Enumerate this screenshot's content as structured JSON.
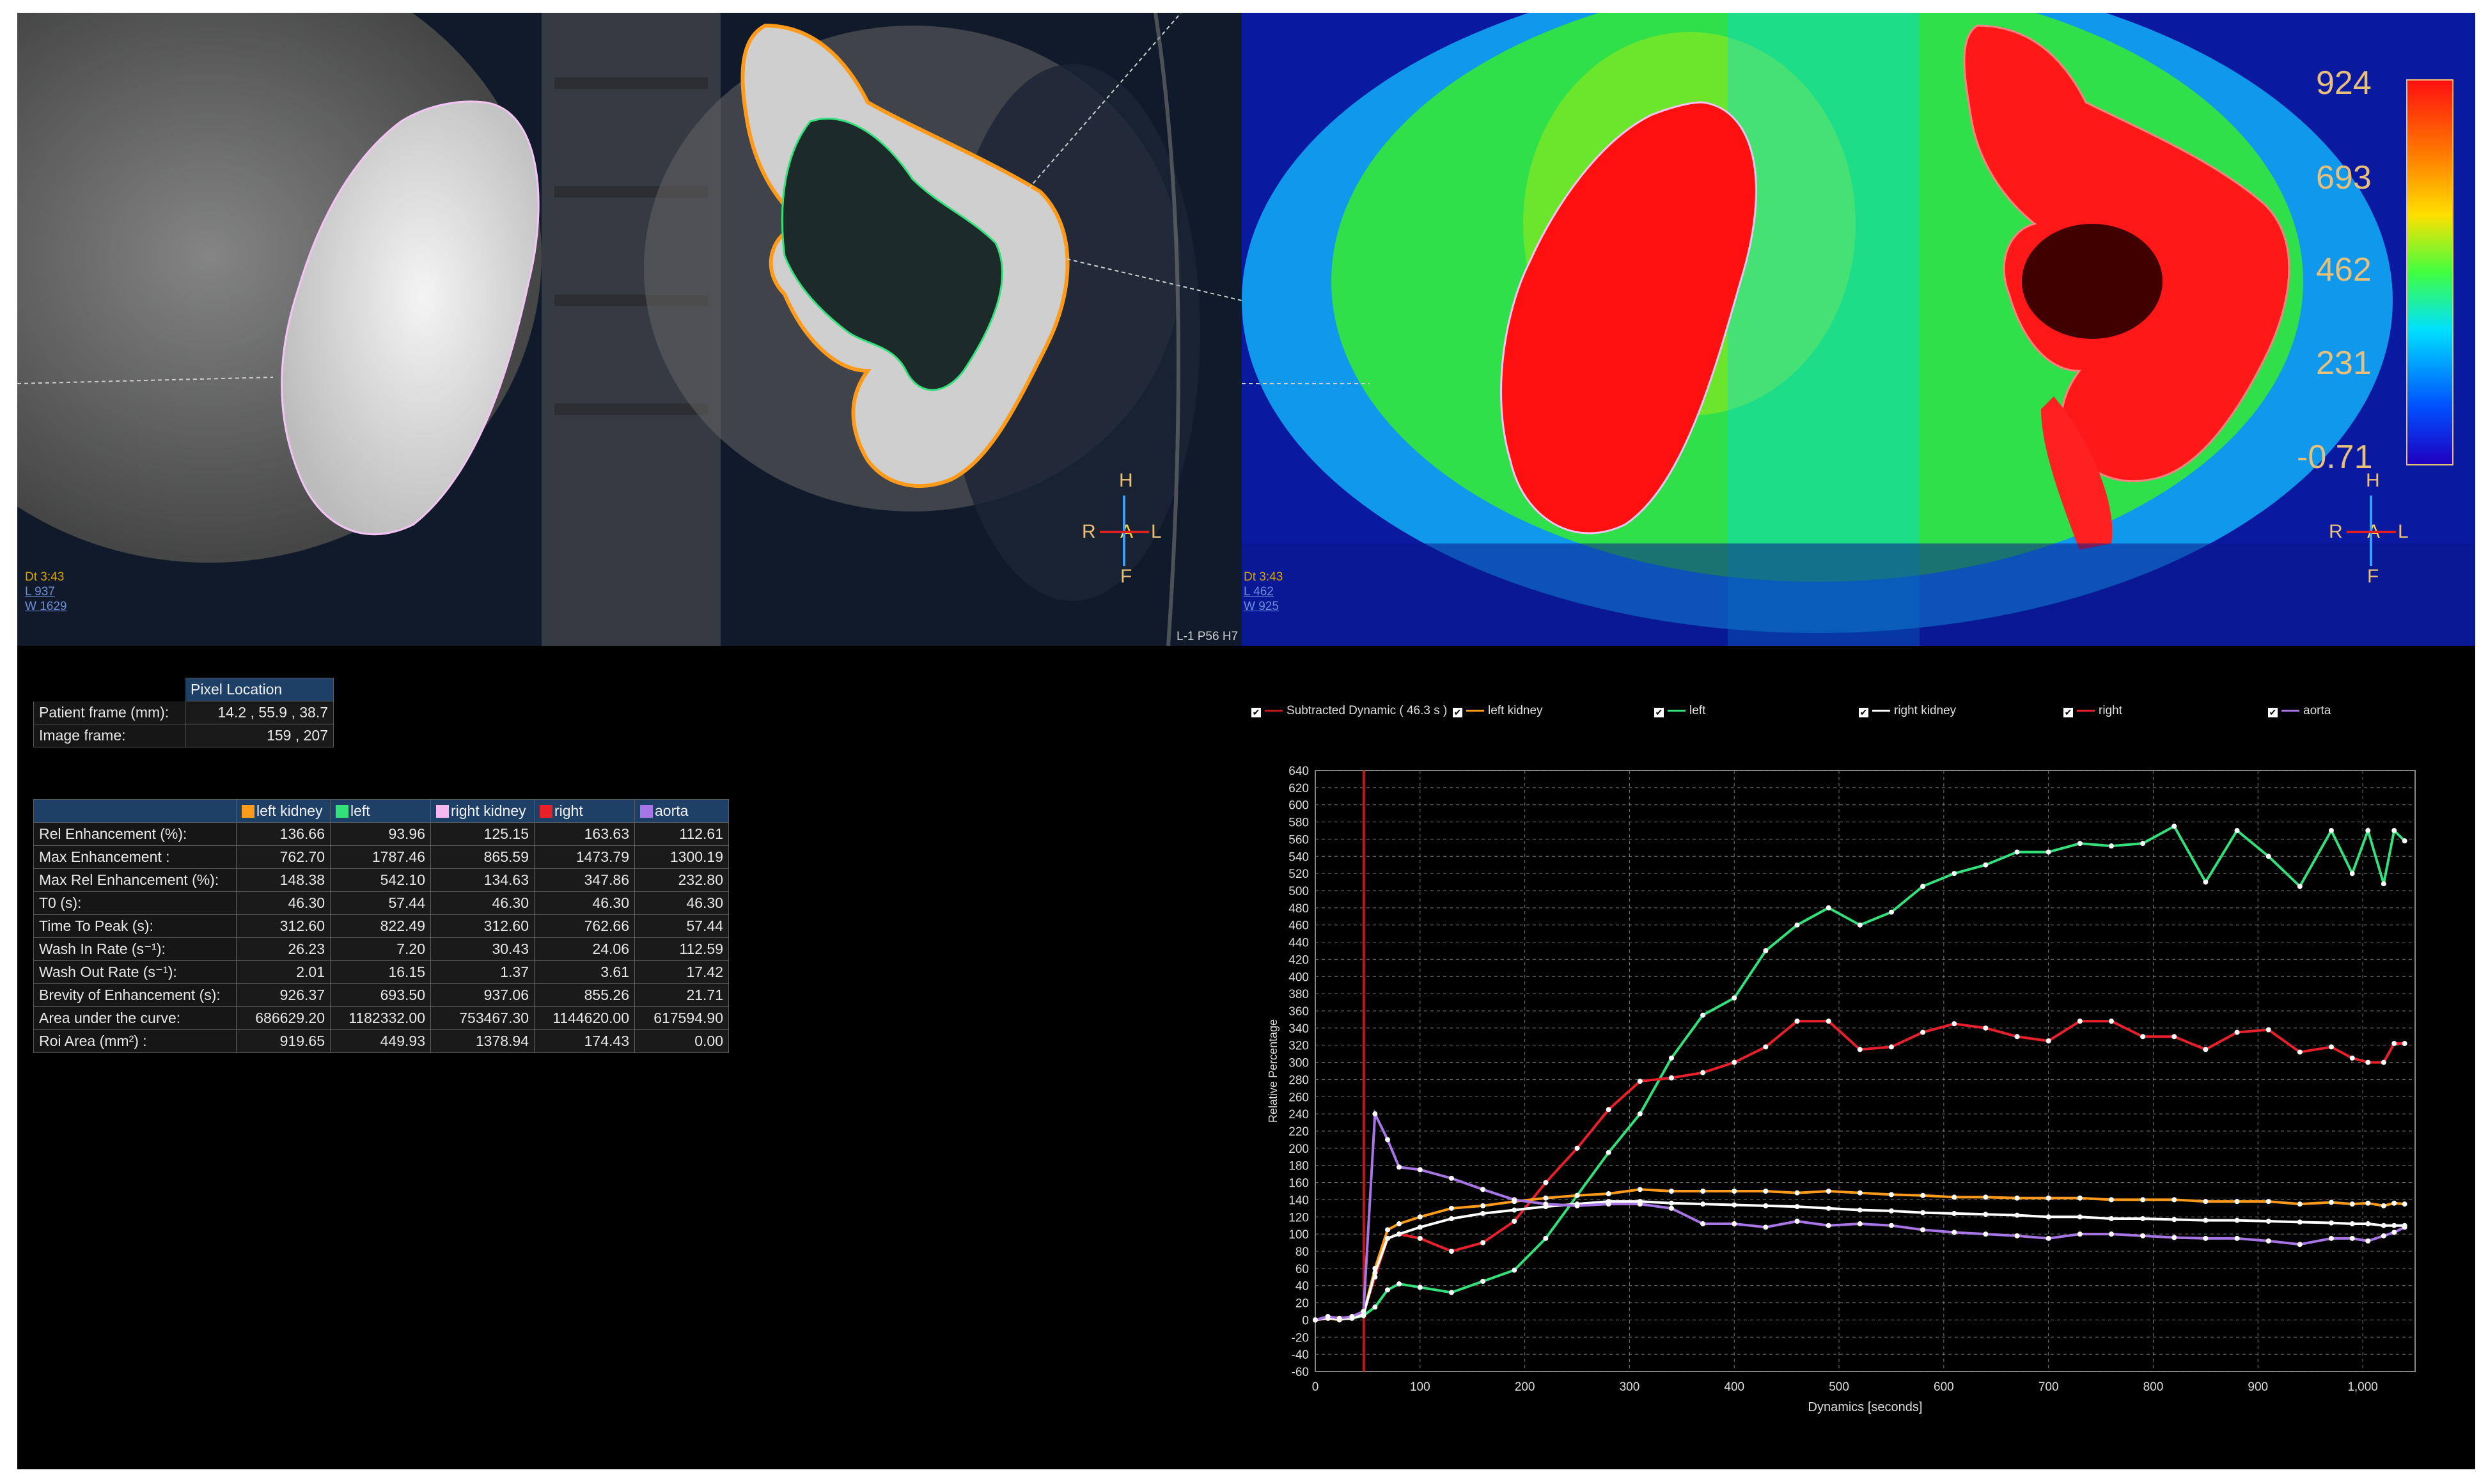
{
  "left_viewer": {
    "dt": "Dt 3:43",
    "l": "L 937",
    "w": "W 1629",
    "corner": "L-1 P56 H7",
    "orient": {
      "h": "H",
      "r": "R",
      "a": "A",
      "l": "L",
      "f": "F"
    }
  },
  "right_viewer": {
    "dt": "Dt 3:43",
    "l": "L 462",
    "w": "W 925",
    "orient": {
      "h": "H",
      "r": "R",
      "a": "A",
      "l": "L",
      "f": "F"
    },
    "scale_labels": [
      "924",
      "693",
      "462",
      "231",
      "-0.71"
    ]
  },
  "pixel_table": {
    "header": "Pixel Location",
    "rows": [
      {
        "label": "Patient frame (mm):",
        "value": "14.2 , 55.9 , 38.7"
      },
      {
        "label": "Image frame:",
        "value": "159 , 207"
      }
    ]
  },
  "roi_table": {
    "columns": [
      {
        "name": "left kidney",
        "color": "#ff9a1a"
      },
      {
        "name": "left",
        "color": "#33e07a"
      },
      {
        "name": "right kidney",
        "color": "#f7b8f0"
      },
      {
        "name": "right",
        "color": "#e8202a"
      },
      {
        "name": "aorta",
        "color": "#a875e6"
      }
    ],
    "rows": [
      {
        "label": "Rel Enhancement  (%):",
        "values": [
          "136.66",
          "93.96",
          "125.15",
          "163.63",
          "112.61"
        ]
      },
      {
        "label": "Max Enhancement :",
        "values": [
          "762.70",
          "1787.46",
          "865.59",
          "1473.79",
          "1300.19"
        ]
      },
      {
        "label": "Max Rel Enhancement (%):",
        "values": [
          "148.38",
          "542.10",
          "134.63",
          "347.86",
          "232.80"
        ]
      },
      {
        "label": "T0 (s):",
        "values": [
          "46.30",
          "57.44",
          "46.30",
          "46.30",
          "46.30"
        ]
      },
      {
        "label": "Time To Peak  (s):",
        "values": [
          "312.60",
          "822.49",
          "312.60",
          "762.66",
          "57.44"
        ]
      },
      {
        "label": "Wash In Rate (s⁻¹):",
        "values": [
          "26.23",
          "7.20",
          "30.43",
          "24.06",
          "112.59"
        ]
      },
      {
        "label": "Wash Out Rate (s⁻¹):",
        "values": [
          "2.01",
          "16.15",
          "1.37",
          "3.61",
          "17.42"
        ]
      },
      {
        "label": "Brevity of Enhancement (s):",
        "values": [
          "926.37",
          "693.50",
          "937.06",
          "855.26",
          "21.71"
        ]
      },
      {
        "label": "Area under the curve:",
        "values": [
          "686629.20",
          "1182332.00",
          "753467.30",
          "1144620.00",
          "617594.90"
        ]
      },
      {
        "label": "Roi Area (mm²) :",
        "values": [
          "919.65",
          "449.93",
          "1378.94",
          "174.43",
          "0.00"
        ]
      }
    ]
  },
  "legend": {
    "check": "✔",
    "items": [
      {
        "label": "Subtracted Dynamic ( 46.3 s )",
        "color": "#c01818"
      },
      {
        "label": "left kidney",
        "color": "#ff9a1a"
      },
      {
        "label": "left",
        "color": "#33e07a"
      },
      {
        "label": "right kidney",
        "color": "#ffffff"
      },
      {
        "label": "right",
        "color": "#e8202a"
      },
      {
        "label": "aorta",
        "color": "#a875e6"
      }
    ]
  },
  "chart_data": {
    "type": "line",
    "xlabel": "Dynamics [seconds]",
    "ylabel": "Relative Percentage",
    "xlim": [
      0,
      1050
    ],
    "ylim": [
      -60,
      640
    ],
    "x_ticks": [
      0,
      100,
      200,
      300,
      400,
      500,
      600,
      700,
      800,
      900,
      1000
    ],
    "x_tick_labels": [
      "0",
      "100",
      "200",
      "300",
      "400",
      "500",
      "600",
      "700",
      "800",
      "900",
      "1,000"
    ],
    "y_ticks": [
      -60,
      -40,
      -20,
      0,
      20,
      40,
      60,
      80,
      100,
      120,
      140,
      160,
      180,
      200,
      220,
      240,
      260,
      280,
      300,
      320,
      340,
      360,
      380,
      400,
      420,
      440,
      460,
      480,
      500,
      520,
      540,
      560,
      580,
      600,
      620,
      640
    ],
    "marker_x": 46.3,
    "grid": true,
    "series": [
      {
        "name": "left",
        "color": "#33e07a",
        "x": [
          0,
          12,
          23,
          35,
          46,
          57,
          69,
          80,
          100,
          130,
          160,
          190,
          220,
          250,
          280,
          310,
          340,
          370,
          400,
          430,
          460,
          490,
          520,
          550,
          580,
          610,
          640,
          670,
          700,
          730,
          760,
          790,
          820,
          850,
          880,
          910,
          940,
          970,
          990,
          1005,
          1020,
          1030,
          1040
        ],
        "y": [
          0,
          3,
          1,
          2,
          5,
          15,
          35,
          42,
          38,
          32,
          45,
          58,
          95,
          145,
          195,
          240,
          305,
          355,
          375,
          430,
          460,
          480,
          460,
          475,
          505,
          520,
          530,
          545,
          545,
          555,
          552,
          555,
          575,
          510,
          570,
          540,
          505,
          570,
          520,
          570,
          508,
          570,
          558
        ]
      },
      {
        "name": "right",
        "color": "#e8202a",
        "x": [
          0,
          12,
          23,
          35,
          46,
          57,
          69,
          80,
          100,
          130,
          160,
          190,
          220,
          250,
          280,
          310,
          340,
          370,
          400,
          430,
          460,
          490,
          520,
          550,
          580,
          610,
          640,
          670,
          700,
          730,
          760,
          790,
          820,
          850,
          880,
          910,
          940,
          970,
          990,
          1005,
          1020,
          1030,
          1040
        ],
        "y": [
          0,
          2,
          1,
          3,
          8,
          50,
          95,
          100,
          95,
          80,
          90,
          115,
          160,
          200,
          245,
          278,
          282,
          288,
          300,
          318,
          348,
          348,
          315,
          318,
          335,
          345,
          340,
          330,
          325,
          348,
          348,
          330,
          330,
          315,
          335,
          338,
          312,
          318,
          305,
          300,
          300,
          322,
          322
        ]
      },
      {
        "name": "left kidney",
        "color": "#ff9a1a",
        "x": [
          0,
          12,
          23,
          35,
          46,
          57,
          69,
          80,
          100,
          130,
          160,
          190,
          220,
          250,
          280,
          310,
          340,
          370,
          400,
          430,
          460,
          490,
          520,
          550,
          580,
          610,
          640,
          670,
          700,
          730,
          760,
          790,
          820,
          850,
          880,
          910,
          940,
          970,
          990,
          1005,
          1020,
          1030,
          1040
        ],
        "y": [
          0,
          2,
          0,
          3,
          7,
          60,
          105,
          112,
          120,
          130,
          133,
          138,
          142,
          145,
          147,
          152,
          150,
          150,
          150,
          150,
          148,
          150,
          148,
          146,
          145,
          143,
          143,
          142,
          142,
          142,
          140,
          140,
          140,
          138,
          138,
          138,
          135,
          137,
          135,
          136,
          133,
          136,
          135
        ]
      },
      {
        "name": "right kidney",
        "color": "#ffffff",
        "x": [
          0,
          12,
          23,
          35,
          46,
          57,
          69,
          80,
          100,
          130,
          160,
          190,
          220,
          250,
          280,
          310,
          340,
          370,
          400,
          430,
          460,
          490,
          520,
          550,
          580,
          610,
          640,
          670,
          700,
          730,
          760,
          790,
          820,
          850,
          880,
          910,
          940,
          970,
          990,
          1005,
          1020,
          1030,
          1040
        ],
        "y": [
          0,
          2,
          1,
          2,
          6,
          55,
          95,
          100,
          108,
          118,
          124,
          128,
          132,
          135,
          138,
          138,
          136,
          135,
          134,
          133,
          132,
          130,
          128,
          127,
          125,
          124,
          123,
          122,
          120,
          120,
          118,
          118,
          117,
          116,
          116,
          115,
          114,
          113,
          112,
          112,
          110,
          110,
          110
        ]
      },
      {
        "name": "aorta",
        "color": "#a875e6",
        "x": [
          0,
          12,
          23,
          35,
          46,
          57,
          69,
          80,
          100,
          130,
          160,
          190,
          220,
          250,
          280,
          310,
          340,
          370,
          400,
          430,
          460,
          490,
          520,
          550,
          580,
          610,
          640,
          670,
          700,
          730,
          760,
          790,
          820,
          850,
          880,
          910,
          940,
          970,
          990,
          1005,
          1020,
          1030,
          1040
        ],
        "y": [
          0,
          4,
          2,
          4,
          10,
          240,
          210,
          178,
          175,
          165,
          152,
          140,
          135,
          133,
          135,
          135,
          130,
          112,
          112,
          108,
          115,
          110,
          112,
          110,
          105,
          102,
          100,
          98,
          95,
          100,
          100,
          98,
          96,
          95,
          95,
          92,
          88,
          95,
          95,
          92,
          98,
          102,
          108
        ]
      }
    ]
  }
}
